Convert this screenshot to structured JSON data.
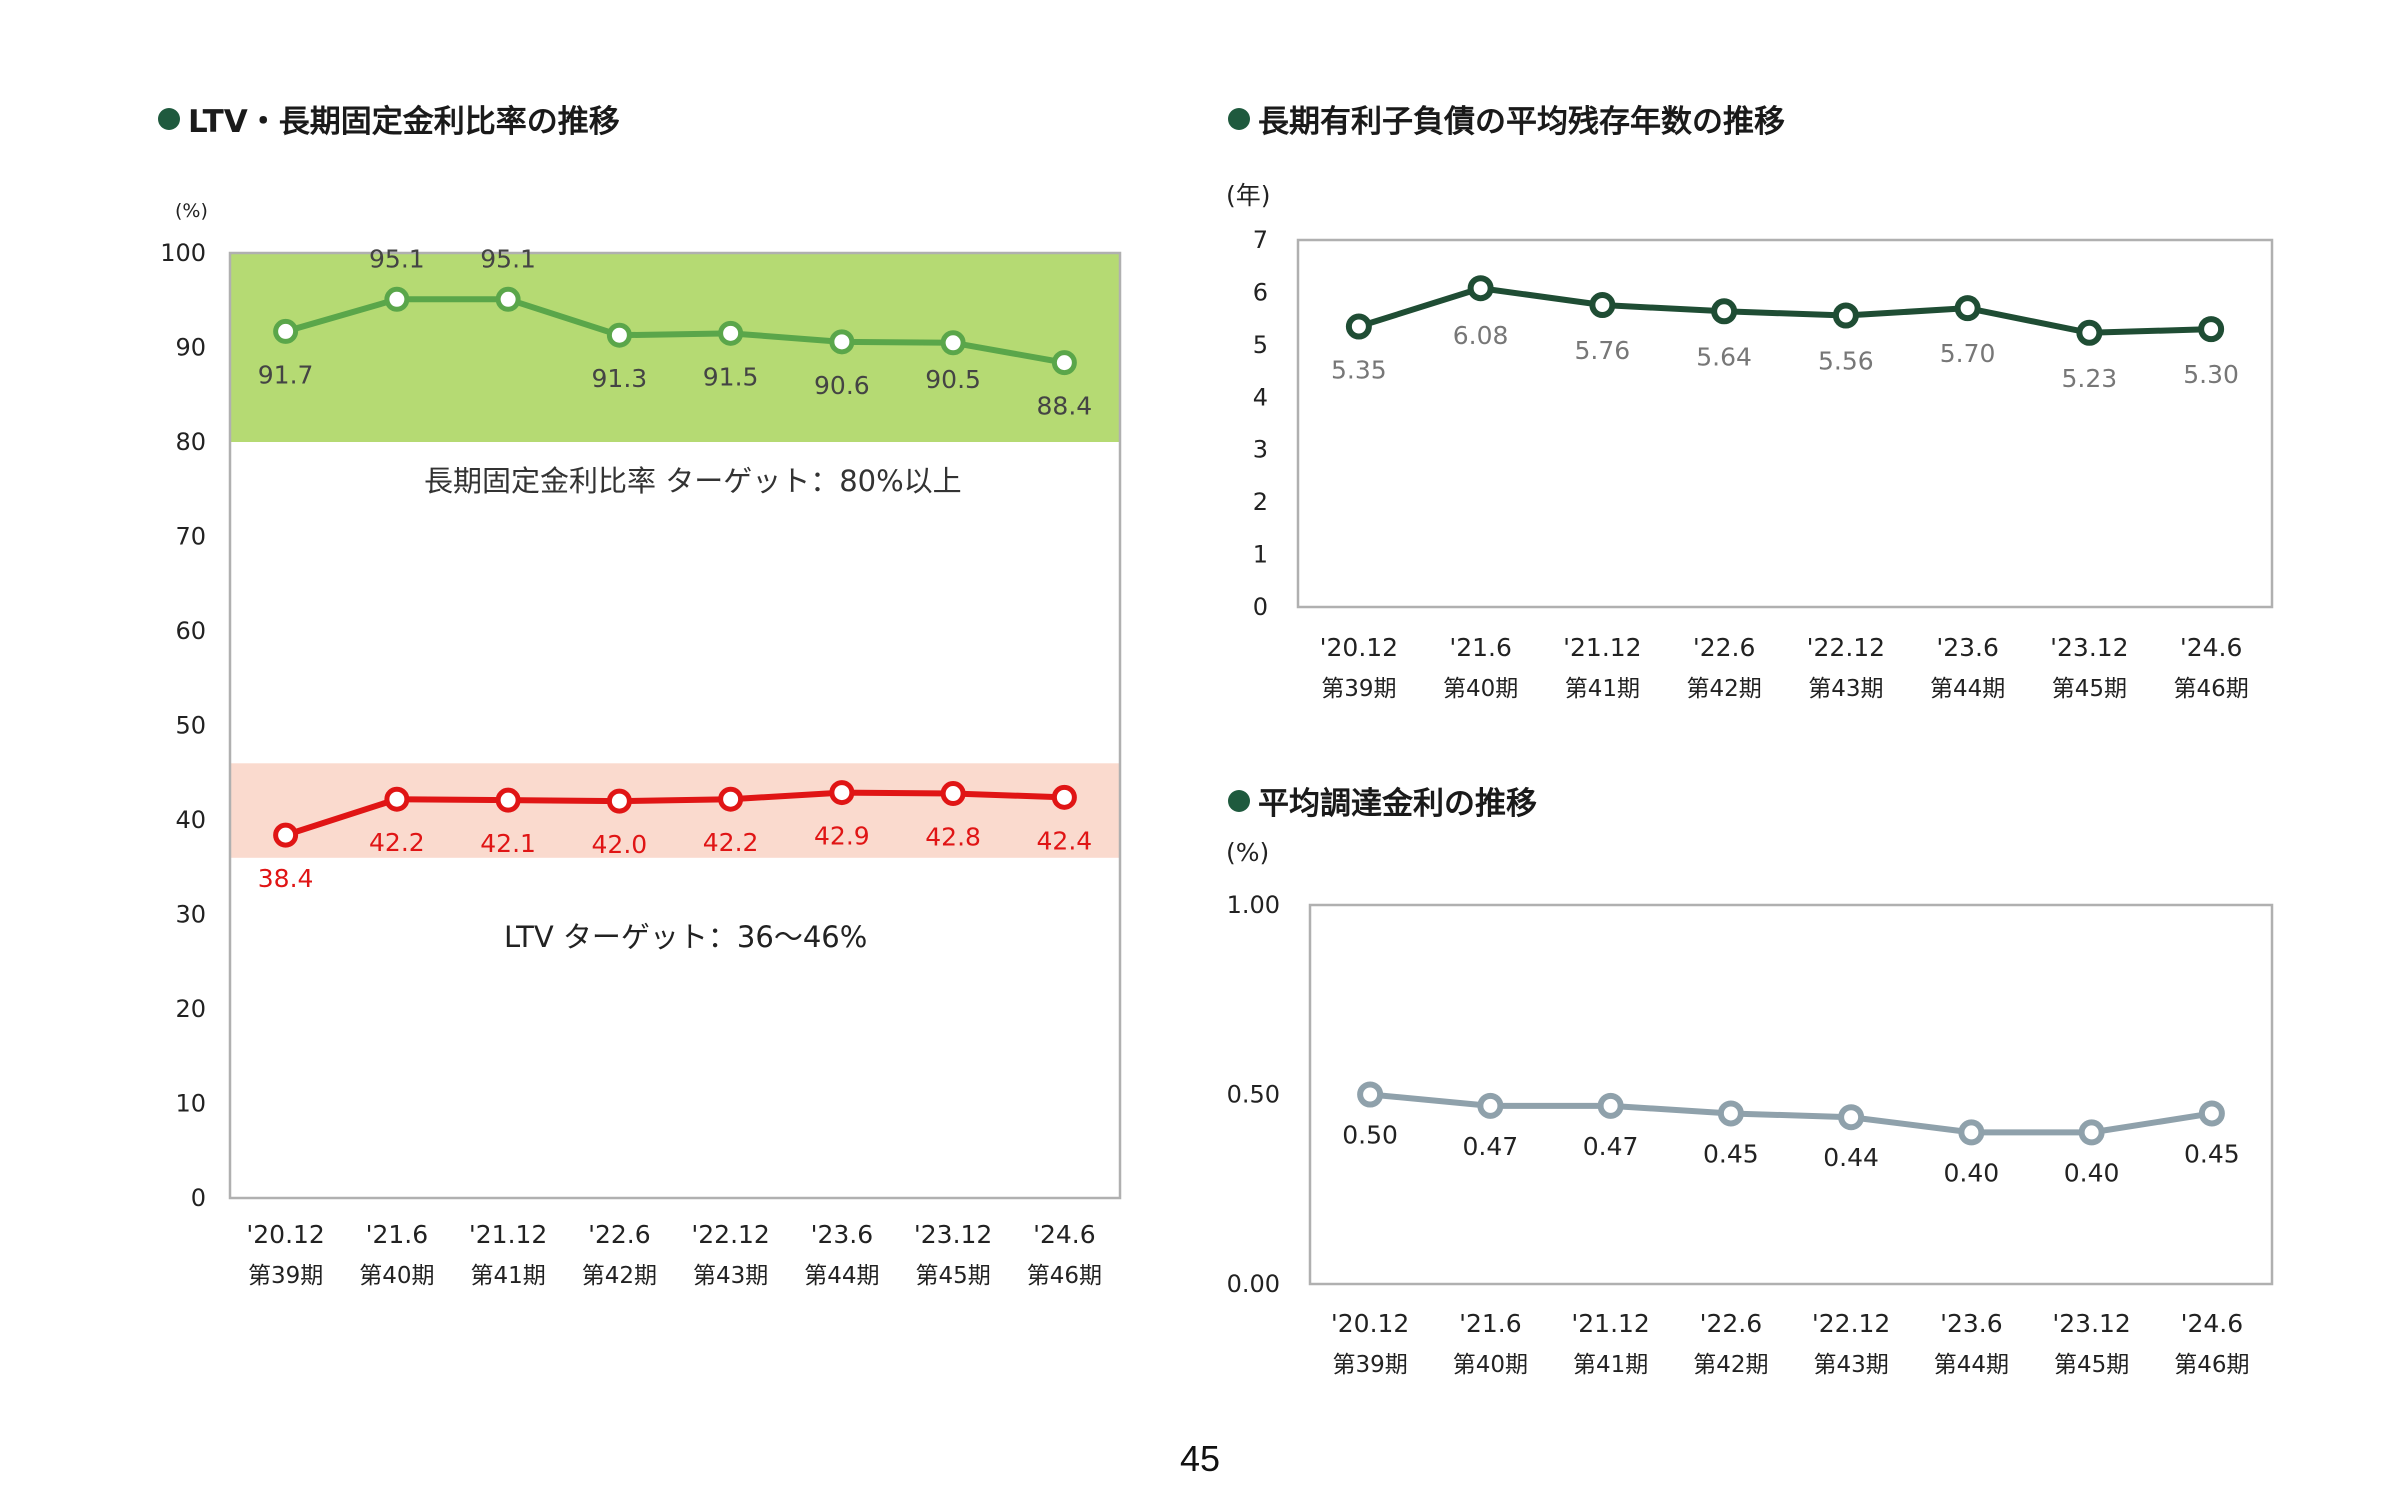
{
  "page_number": "45",
  "charts": {
    "ltv": {
      "title": "LTV・長期固定金利比率の推移",
      "unit": "(%)",
      "target_band_1": "長期固定金利比率 ターゲット：80%以上",
      "target_band_2": "LTV ターゲット：36～46%"
    },
    "remaining": {
      "title": "長期有利子負債の平均残存年数の推移",
      "unit": "(年)"
    },
    "rate": {
      "title": "平均調達金利の推移",
      "unit": "(%)"
    }
  },
  "chart_data": [
    {
      "type": "line",
      "title": "LTV・長期固定金利比率の推移",
      "ylabel": "(%)",
      "ylim": [
        0,
        100
      ],
      "yticks": [
        "0",
        "10",
        "20",
        "30",
        "40",
        "50",
        "60",
        "70",
        "80",
        "90",
        "100"
      ],
      "categories": [
        "'20.12",
        "'21.6",
        "'21.12",
        "'22.6",
        "'22.12",
        "'23.6",
        "'23.12",
        "'24.6"
      ],
      "periods": [
        "第39期",
        "第40期",
        "第41期",
        "第42期",
        "第43期",
        "第44期",
        "第45期",
        "第46期"
      ],
      "bands": [
        {
          "from": 80,
          "to": 100,
          "color": "#a8d35a"
        },
        {
          "from": 36,
          "to": 46,
          "color": "#f9d4c6"
        }
      ],
      "series": [
        {
          "values": [
            91.7,
            95.1,
            95.1,
            91.3,
            91.5,
            90.6,
            90.5,
            88.4
          ],
          "labels": [
            "91.7",
            "95.1",
            "95.1",
            "91.3",
            "91.5",
            "90.6",
            "90.5",
            "88.4"
          ],
          "color": "#5aa64a",
          "label_color": "#444444"
        },
        {
          "values": [
            38.4,
            42.2,
            42.1,
            42.0,
            42.2,
            42.9,
            42.8,
            42.4
          ],
          "labels": [
            "38.4",
            "42.2",
            "42.1",
            "42.0",
            "42.2",
            "42.9",
            "42.8",
            "42.4"
          ],
          "color": "#e01515",
          "label_color": "#e01515"
        }
      ]
    },
    {
      "type": "line",
      "title": "長期有利子負債の平均残存年数の推移",
      "ylabel": "(年)",
      "ylim": [
        0,
        7
      ],
      "yticks": [
        "0",
        "1",
        "2",
        "3",
        "4",
        "5",
        "6",
        "7"
      ],
      "categories": [
        "'20.12",
        "'21.6",
        "'21.12",
        "'22.6",
        "'22.12",
        "'23.6",
        "'23.12",
        "'24.6"
      ],
      "periods": [
        "第39期",
        "第40期",
        "第41期",
        "第42期",
        "第43期",
        "第44期",
        "第45期",
        "第46期"
      ],
      "series": [
        {
          "values": [
            5.35,
            6.08,
            5.76,
            5.64,
            5.56,
            5.7,
            5.23,
            5.3
          ],
          "labels": [
            "5.35",
            "6.08",
            "5.76",
            "5.64",
            "5.56",
            "5.70",
            "5.23",
            "5.30"
          ],
          "color": "#1f4d34",
          "label_color": "#777777"
        }
      ]
    },
    {
      "type": "line",
      "title": "平均調達金利の推移",
      "ylabel": "(%)",
      "ylim": [
        0,
        1
      ],
      "yticks": [
        "0.00",
        "0.50",
        "1.00"
      ],
      "categories": [
        "'20.12",
        "'21.6",
        "'21.12",
        "'22.6",
        "'22.12",
        "'23.6",
        "'23.12",
        "'24.6"
      ],
      "periods": [
        "第39期",
        "第40期",
        "第41期",
        "第42期",
        "第43期",
        "第44期",
        "第45期",
        "第46期"
      ],
      "series": [
        {
          "values": [
            0.5,
            0.47,
            0.47,
            0.45,
            0.44,
            0.4,
            0.4,
            0.45
          ],
          "labels": [
            "0.50",
            "0.47",
            "0.47",
            "0.45",
            "0.44",
            "0.40",
            "0.40",
            "0.45"
          ],
          "color": "#8fa1ab",
          "label_color": "#222222"
        }
      ]
    }
  ],
  "colors": {
    "bullet": "#1f5a3e",
    "frame": "#b0b0b0"
  }
}
